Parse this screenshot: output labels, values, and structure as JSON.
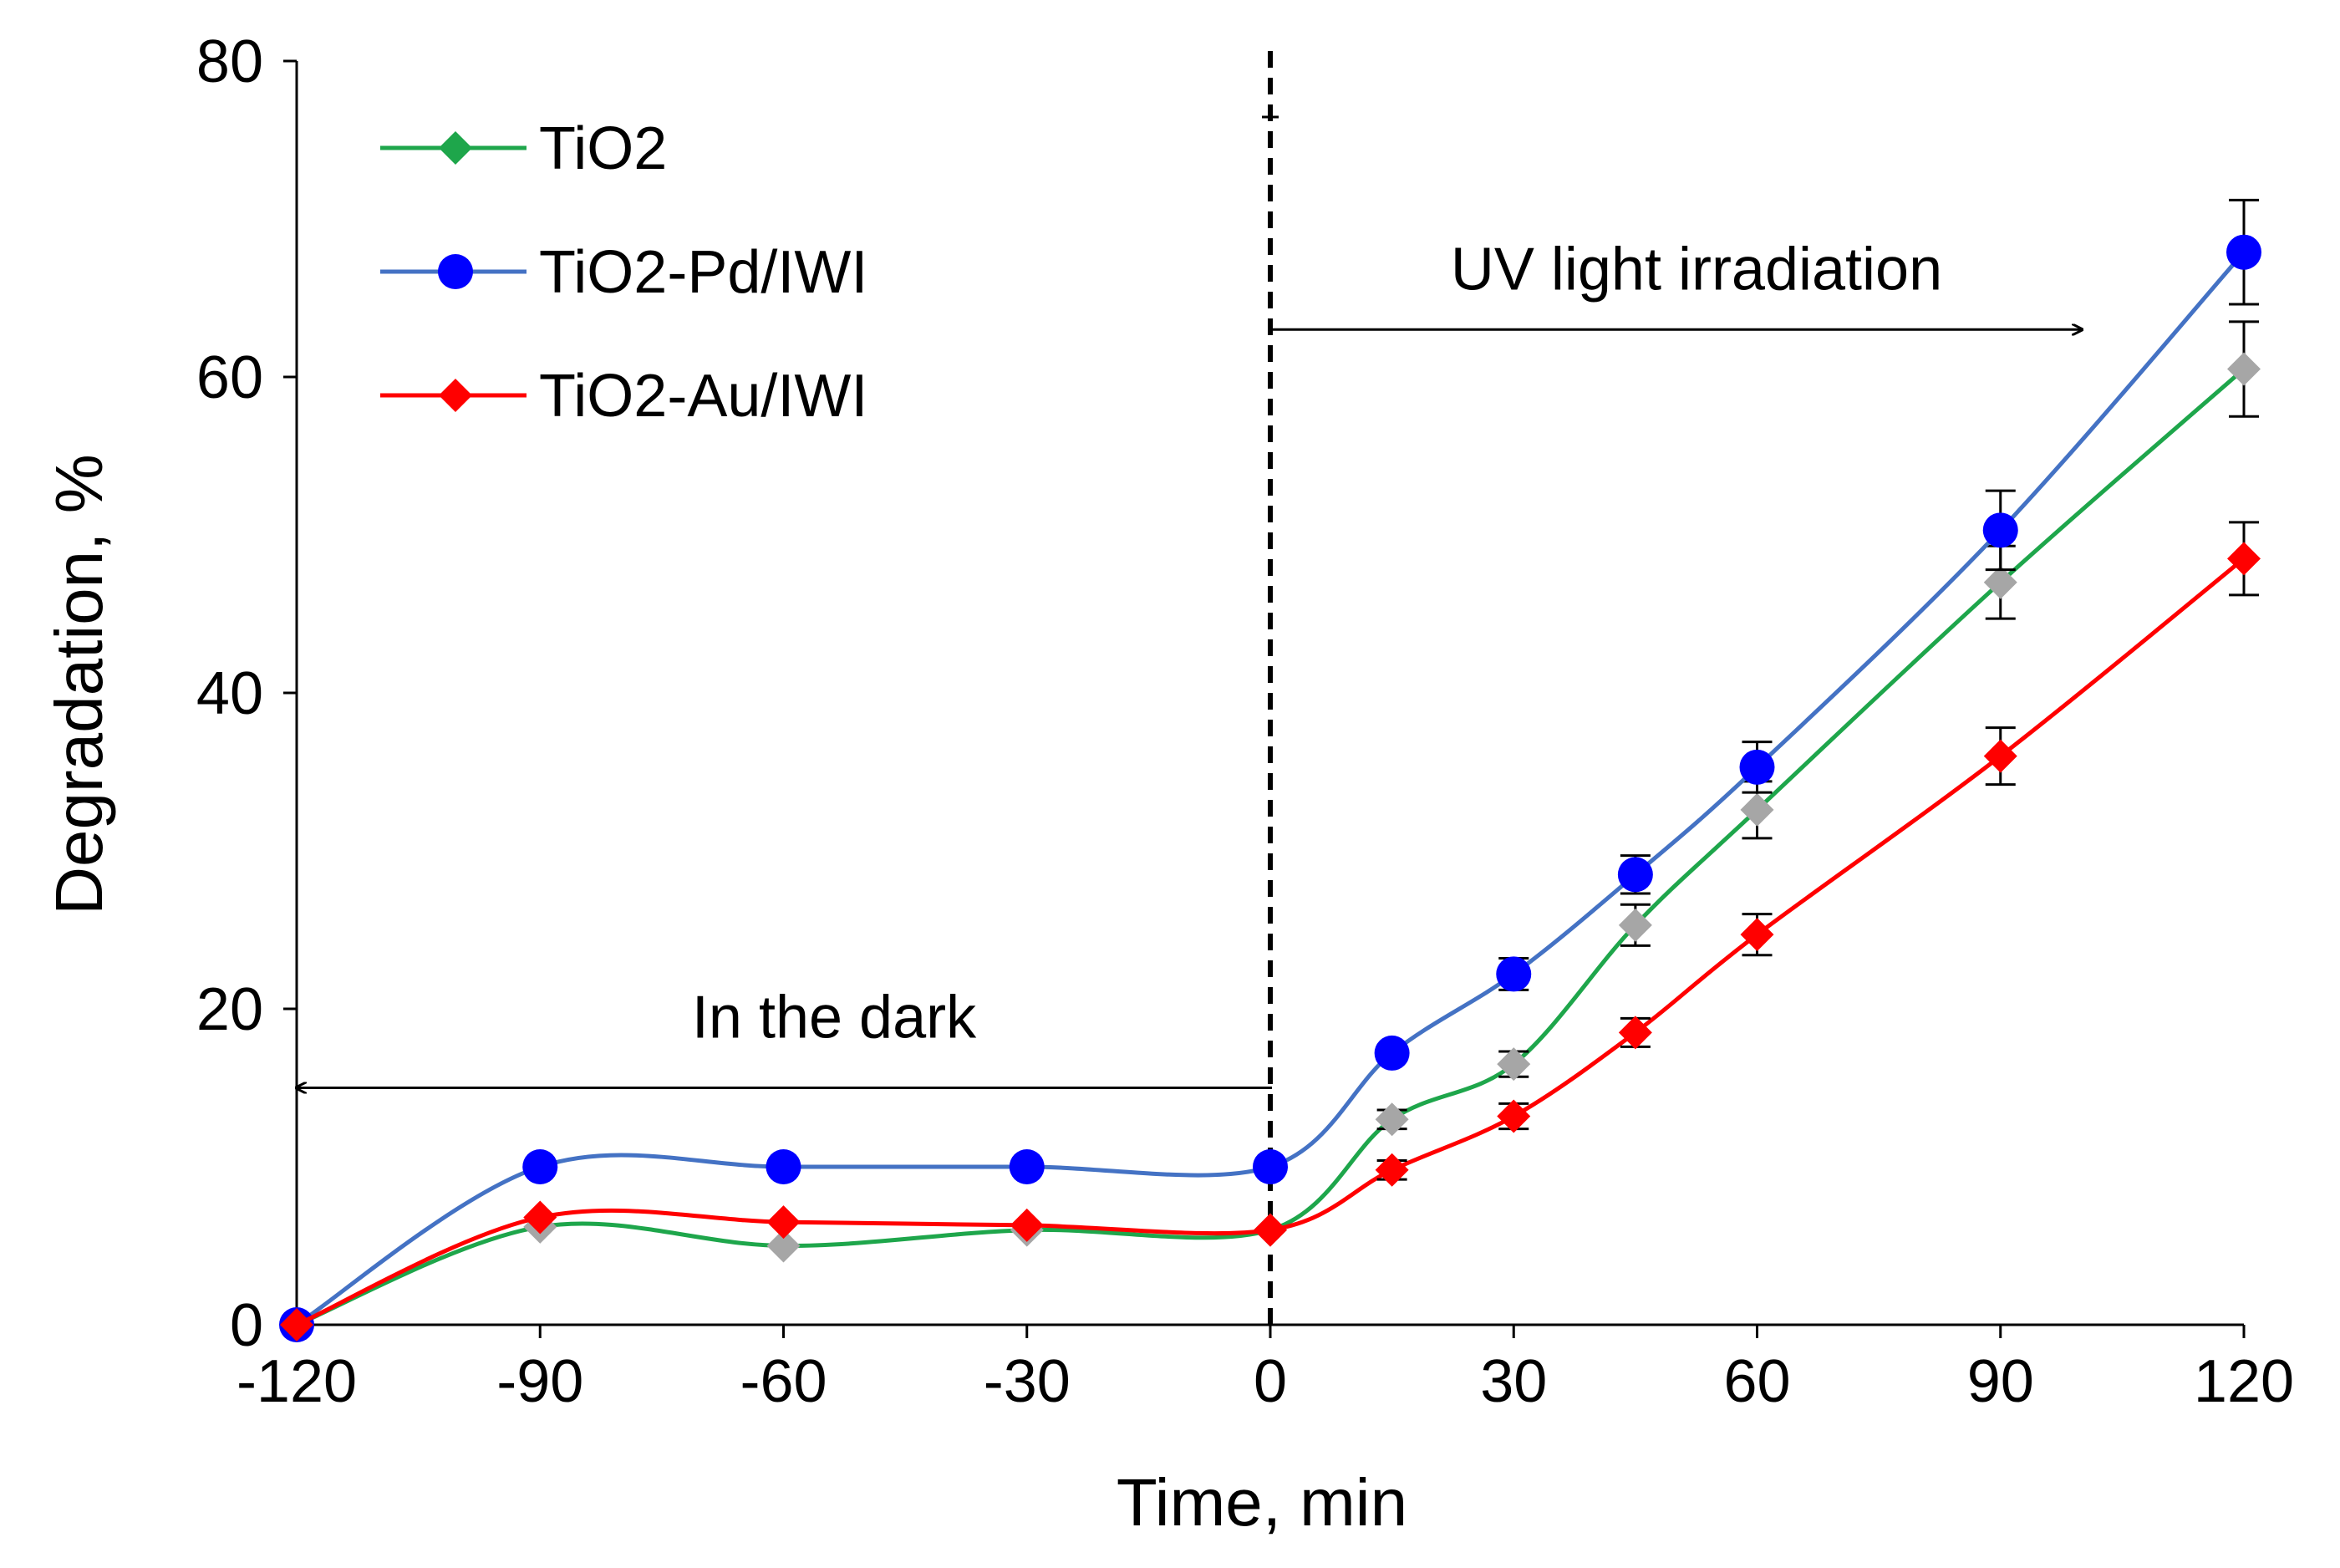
{
  "chart_data": {
    "type": "line",
    "title": "",
    "xlabel": "Time, min",
    "ylabel": "Degradation, %",
    "xlim": [
      -120,
      120
    ],
    "ylim": [
      0,
      80
    ],
    "x_ticks": [
      -120,
      -90,
      -60,
      -30,
      0,
      30,
      60,
      90,
      120
    ],
    "y_ticks": [
      0,
      20,
      40,
      60,
      80
    ],
    "x_tick_labels": [
      "-120",
      "-90",
      "-60",
      "-30",
      "0",
      "30",
      "60",
      "90",
      "120"
    ],
    "y_tick_labels": [
      "0",
      "20",
      "40",
      "60",
      "80"
    ],
    "grid": false,
    "legend_position": "top-left",
    "series": [
      {
        "name": "TiO2",
        "color": "#1ea64b",
        "marker": "diamond",
        "marker_color": "#a6a6a6",
        "x": [
          -120,
          -90,
          -60,
          -30,
          0,
          15,
          30,
          45,
          60,
          90,
          120
        ],
        "y": [
          0,
          6.2,
          5,
          6,
          6,
          13,
          16.5,
          25.3,
          32.6,
          47,
          60.5
        ],
        "error": [
          0,
          0,
          0,
          0,
          0,
          0.6,
          0.8,
          1.3,
          1.8,
          2.3,
          3
        ]
      },
      {
        "name": "TiO2-Pd/IWI",
        "color": "#4472c4",
        "marker": "circle",
        "marker_color": "#0000ff",
        "x": [
          -120,
          -90,
          -60,
          -30,
          0,
          15,
          30,
          45,
          60,
          90,
          120
        ],
        "y": [
          0,
          10,
          10,
          10,
          10,
          17.2,
          22.2,
          28.5,
          35.3,
          50.3,
          67.9
        ],
        "error": [
          0,
          0,
          0,
          0,
          0,
          0.5,
          1,
          1.2,
          1.6,
          2.5,
          3.3
        ]
      },
      {
        "name": "TiO2-Au/IWI",
        "color": "#ff0000",
        "marker": "diamond",
        "marker_color": "#ff0000",
        "x": [
          -120,
          -90,
          -60,
          -30,
          0,
          15,
          30,
          45,
          60,
          90,
          120
        ],
        "y": [
          0,
          6.8,
          6.5,
          6.3,
          6,
          9.8,
          13.2,
          18.5,
          24.7,
          36,
          48.5
        ],
        "error": [
          0,
          0,
          0,
          0,
          0,
          0.6,
          0.8,
          0.9,
          1.3,
          1.8,
          2.3
        ]
      }
    ],
    "annotations": [
      {
        "text": "In the dark",
        "arrow_from_x": 0,
        "arrow_to_x": -120,
        "arrow_y": 15
      },
      {
        "text": "UV light irradiation",
        "arrow_from_x": 0,
        "arrow_to_x": 100,
        "arrow_y": 63
      }
    ],
    "divider_x": 0
  }
}
